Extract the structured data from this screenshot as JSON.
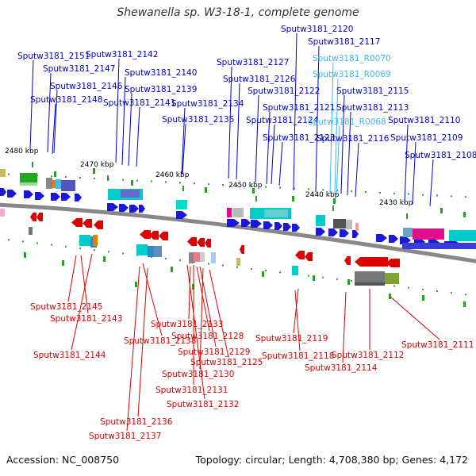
{
  "header": {
    "title": "Shewanella sp. W3-18-1, complete genome"
  },
  "footer": {
    "accession": "Accession: NC_008750",
    "summary": "Topology: circular; Length: 4,708,380 bp; Genes: 4,172"
  },
  "scale_labels": [
    "2480 kbp",
    "2470 kbp",
    "2460 kbp",
    "2450 kbp",
    "2440 kbp",
    "2430 kbp"
  ],
  "colors": {
    "forward_label": "#0000cc",
    "reverse_label": "#dd0000",
    "rna_label": "#33bbee",
    "backbone": "#888888"
  },
  "top_labels": [
    {
      "text": "Sputw3181_2151",
      "kind": "gene"
    },
    {
      "text": "Sputw3181_2147",
      "kind": "gene"
    },
    {
      "text": "Sputw3181_2146",
      "kind": "gene"
    },
    {
      "text": "Sputw3181_2148",
      "kind": "gene"
    },
    {
      "text": "Sputw3181_2142",
      "kind": "gene"
    },
    {
      "text": "Sputw3181_2140",
      "kind": "gene"
    },
    {
      "text": "Sputw3181_2139",
      "kind": "gene"
    },
    {
      "text": "Sputw3181_2141",
      "kind": "gene"
    },
    {
      "text": "Sputw3181_2134",
      "kind": "gene"
    },
    {
      "text": "Sputw3181_2135",
      "kind": "gene"
    },
    {
      "text": "Sputw3181_2127",
      "kind": "gene"
    },
    {
      "text": "Sputw3181_2126",
      "kind": "gene"
    },
    {
      "text": "Sputw3181_2120",
      "kind": "gene"
    },
    {
      "text": "Sputw3181_2117",
      "kind": "gene"
    },
    {
      "text": "Sputw3181_R0070",
      "kind": "rna"
    },
    {
      "text": "Sputw3181_R0069",
      "kind": "rna"
    },
    {
      "text": "Sputw3181_2122",
      "kind": "gene"
    },
    {
      "text": "Sputw3181_2121",
      "kind": "gene"
    },
    {
      "text": "Sputw3181_2124",
      "kind": "gene"
    },
    {
      "text": "Sputw3181_2123",
      "kind": "gene"
    },
    {
      "text": "Sputw3181_2115",
      "kind": "gene"
    },
    {
      "text": "Sputw3181_2113",
      "kind": "gene"
    },
    {
      "text": "Sputw3181_R0068",
      "kind": "rna"
    },
    {
      "text": "Sputw3181_2116",
      "kind": "gene"
    },
    {
      "text": "Sputw3181_2110",
      "kind": "gene"
    },
    {
      "text": "Sputw3181_2109",
      "kind": "gene"
    },
    {
      "text": "Sputw3181_2108",
      "kind": "gene"
    }
  ],
  "bottom_labels": [
    {
      "text": "Sputw3181_2145"
    },
    {
      "text": "Sputw3181_2143"
    },
    {
      "text": "Sputw3181_2144"
    },
    {
      "text": "Sputw3181_2138"
    },
    {
      "text": "Sputw3181_2133"
    },
    {
      "text": "Sputw3181_2128"
    },
    {
      "text": "Sputw3181_2129"
    },
    {
      "text": "Sputw3181_2125"
    },
    {
      "text": "Sputw3181_2130"
    },
    {
      "text": "Sputw3181_2131"
    },
    {
      "text": "Sputw3181_2132"
    },
    {
      "text": "Sputw3181_2136"
    },
    {
      "text": "Sputw3181_2137"
    },
    {
      "text": "Sputw3181_2119"
    },
    {
      "text": "Sputw3181_2118"
    },
    {
      "text": "Sputw3181_2114"
    },
    {
      "text": "Sputw3181_2112"
    },
    {
      "text": "Sputw3181_2111"
    }
  ]
}
